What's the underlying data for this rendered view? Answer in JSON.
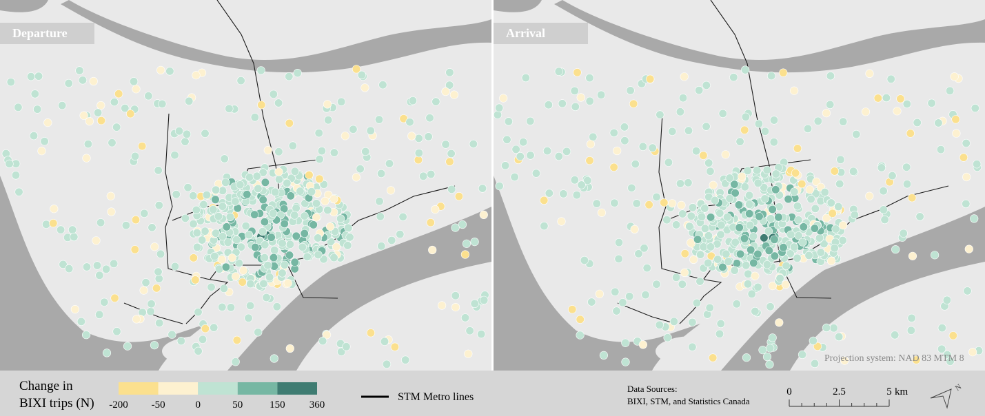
{
  "panels": [
    {
      "label": "Departure"
    },
    {
      "label": "Arrival"
    }
  ],
  "legend": {
    "title_lines": [
      "Change in",
      "BIXI trips (N)"
    ],
    "breaks": [
      -200,
      -50,
      0,
      50,
      150,
      360
    ],
    "colors": [
      "#fbe08e",
      "#fdf1d0",
      "#bfe3d3",
      "#76b7a3",
      "#3f7c72"
    ],
    "line_label": "STM Metro lines"
  },
  "sources": {
    "lines": [
      "Data Sources:",
      "BIXI, STM, and Statistics Canada"
    ]
  },
  "scale": {
    "ticks": [
      0,
      2.5,
      5
    ],
    "unit": "km"
  },
  "projection": "Projection system: NAD 83 MTM 8"
}
